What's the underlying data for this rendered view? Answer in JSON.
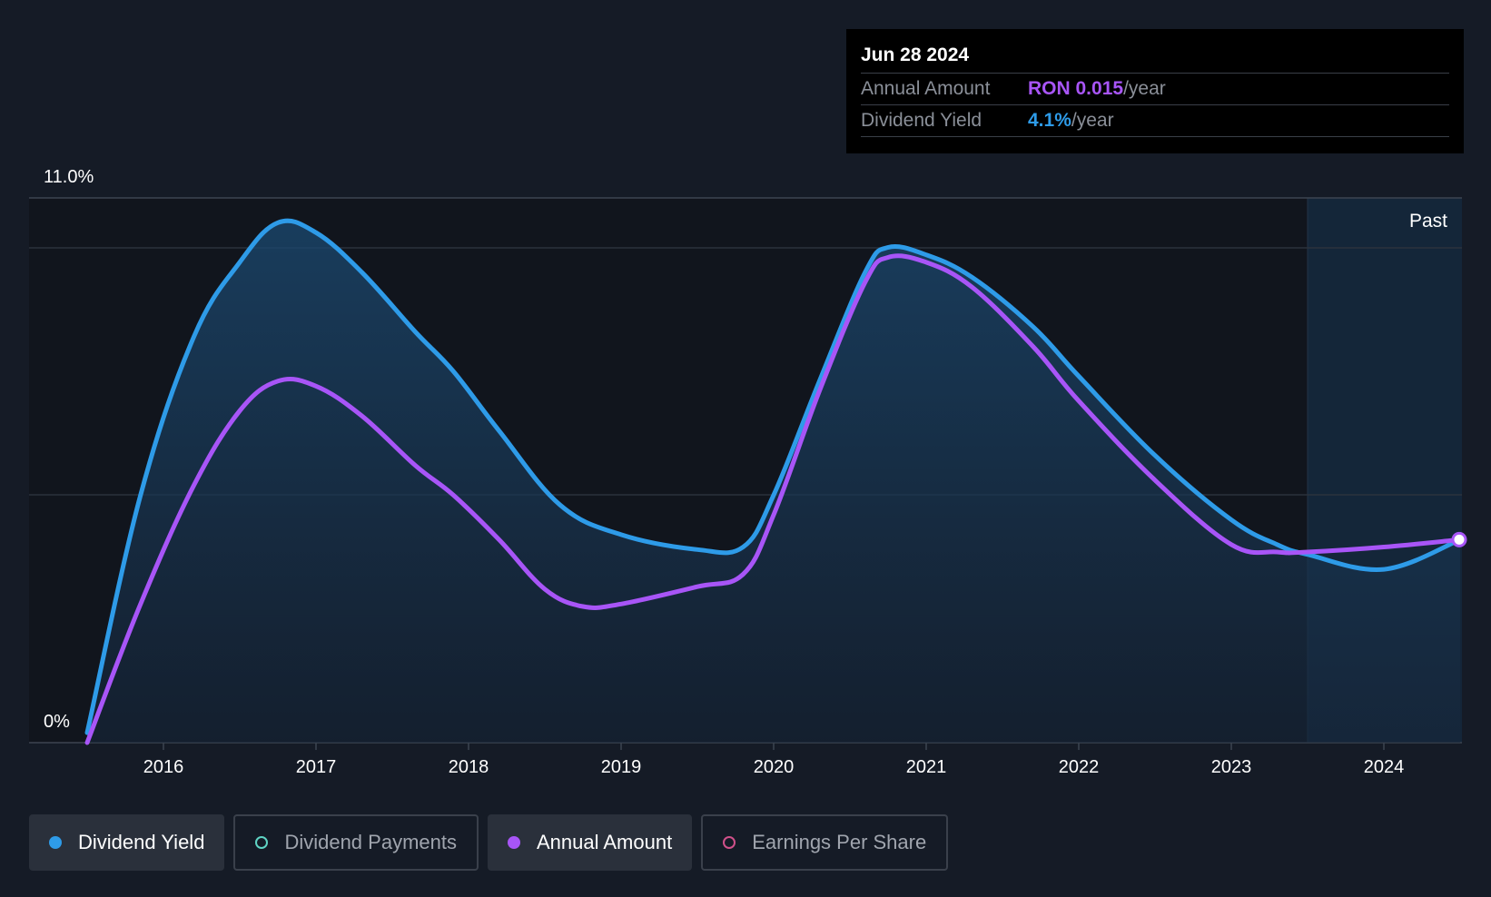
{
  "tooltip": {
    "date": "Jun 28 2024",
    "rows": [
      {
        "label": "Annual Amount",
        "value": "RON 0.015",
        "unit": "/year"
      },
      {
        "label": "Dividend Yield",
        "value": "4.1%",
        "unit": "/year"
      }
    ]
  },
  "legend": [
    {
      "label": "Dividend Yield",
      "active": true
    },
    {
      "label": "Dividend Payments",
      "active": false
    },
    {
      "label": "Annual Amount",
      "active": true
    },
    {
      "label": "Earnings Per Share",
      "active": false
    }
  ],
  "colors": {
    "background": "#151b26",
    "dividend_yield": "#2e9be8",
    "annual_amount": "#a855f7",
    "dividend_payments": "#5fd4c4",
    "earnings_per_share": "#d0508a"
  },
  "chart_data": {
    "type": "line",
    "ylim": [
      0,
      11.0
    ],
    "y_tick_labels": [
      "0%",
      "11.0%"
    ],
    "x_tick_labels": [
      "2016",
      "2017",
      "2018",
      "2019",
      "2020",
      "2021",
      "2022",
      "2023",
      "2024"
    ],
    "x_range": [
      2015.5,
      2024.5
    ],
    "past_label": "Past",
    "past_start": 2023.5,
    "grid": true,
    "series": [
      {
        "name": "Dividend Yield",
        "x": [
          2015.5,
          2015.85,
          2016.2,
          2016.5,
          2016.75,
          2017.0,
          2017.3,
          2017.65,
          2017.9,
          2018.2,
          2018.6,
          2019.0,
          2019.5,
          2019.8,
          2020.0,
          2020.3,
          2020.6,
          2020.75,
          2021.0,
          2021.3,
          2021.7,
          2022.0,
          2022.5,
          2023.0,
          2023.3,
          2023.5,
          2024.0,
          2024.5
        ],
        "values": [
          0.2,
          5.0,
          8.2,
          9.7,
          10.5,
          10.3,
          9.5,
          8.3,
          7.5,
          6.3,
          4.8,
          4.2,
          3.9,
          3.95,
          5.0,
          7.3,
          9.5,
          10.0,
          9.85,
          9.4,
          8.4,
          7.4,
          5.8,
          4.5,
          4.0,
          3.8,
          3.5,
          4.1
        ]
      },
      {
        "name": "Annual Amount",
        "x": [
          2015.5,
          2015.85,
          2016.2,
          2016.5,
          2016.75,
          2017.0,
          2017.3,
          2017.65,
          2017.9,
          2018.2,
          2018.5,
          2018.75,
          2019.0,
          2019.5,
          2019.8,
          2020.0,
          2020.3,
          2020.6,
          2020.75,
          2021.0,
          2021.3,
          2021.7,
          2022.0,
          2022.5,
          2023.0,
          2023.3,
          2023.5,
          2024.0,
          2024.5
        ],
        "values": [
          0.0,
          2.8,
          5.2,
          6.7,
          7.3,
          7.2,
          6.6,
          5.6,
          5.0,
          4.1,
          3.1,
          2.75,
          2.8,
          3.15,
          3.4,
          4.6,
          7.1,
          9.3,
          9.8,
          9.7,
          9.2,
          8.0,
          6.9,
          5.3,
          4.0,
          3.85,
          3.85,
          3.95,
          4.1
        ]
      }
    ]
  }
}
